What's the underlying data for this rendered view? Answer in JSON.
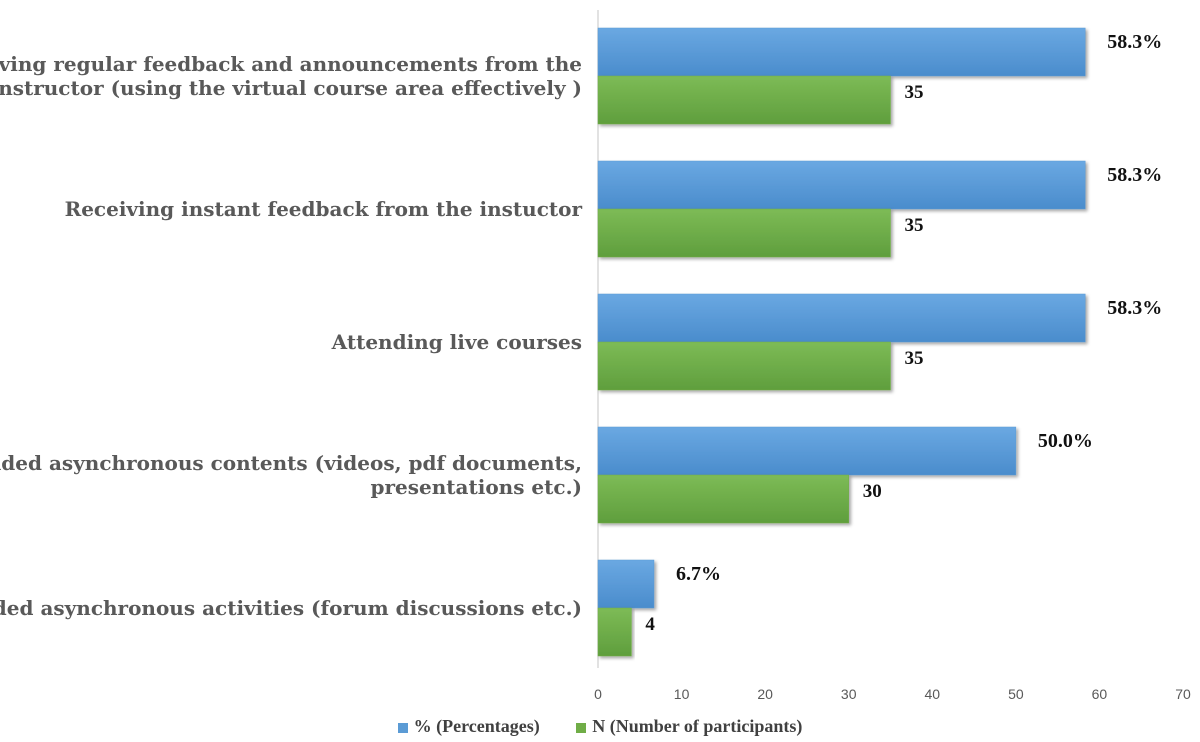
{
  "chart_data": {
    "type": "bar",
    "orientation": "horizontal",
    "categories": [
      [
        "Receiving regular feedback and announcements from the",
        "instructor (using the virtual course area effectively )"
      ],
      [
        "Receiving instant feedback from the instuctor"
      ],
      [
        "Attending live courses"
      ],
      [
        "Provided asynchronous contents (videos, pdf documents,",
        "presentations etc.)"
      ],
      [
        "Provided asynchronous activities (forum discussions etc.)"
      ]
    ],
    "series": [
      {
        "name": "% (Percentages)",
        "color": "#5b9bd5",
        "values": [
          58.3,
          58.3,
          58.3,
          50.0,
          6.7
        ],
        "labels": [
          "58.3%",
          "58.3%",
          "58.3%",
          "50.0%",
          "6.7%"
        ]
      },
      {
        "name": "N (Number of participants)",
        "color": "#70ad47",
        "values": [
          35,
          35,
          35,
          30,
          4
        ],
        "labels": [
          "35",
          "35",
          "35",
          "30",
          "4"
        ]
      }
    ],
    "xlim": [
      0,
      70
    ],
    "xticks": [
      "0",
      "10",
      "20",
      "30",
      "40",
      "50",
      "60",
      "70"
    ],
    "grid": false,
    "legend_position": "bottom"
  }
}
